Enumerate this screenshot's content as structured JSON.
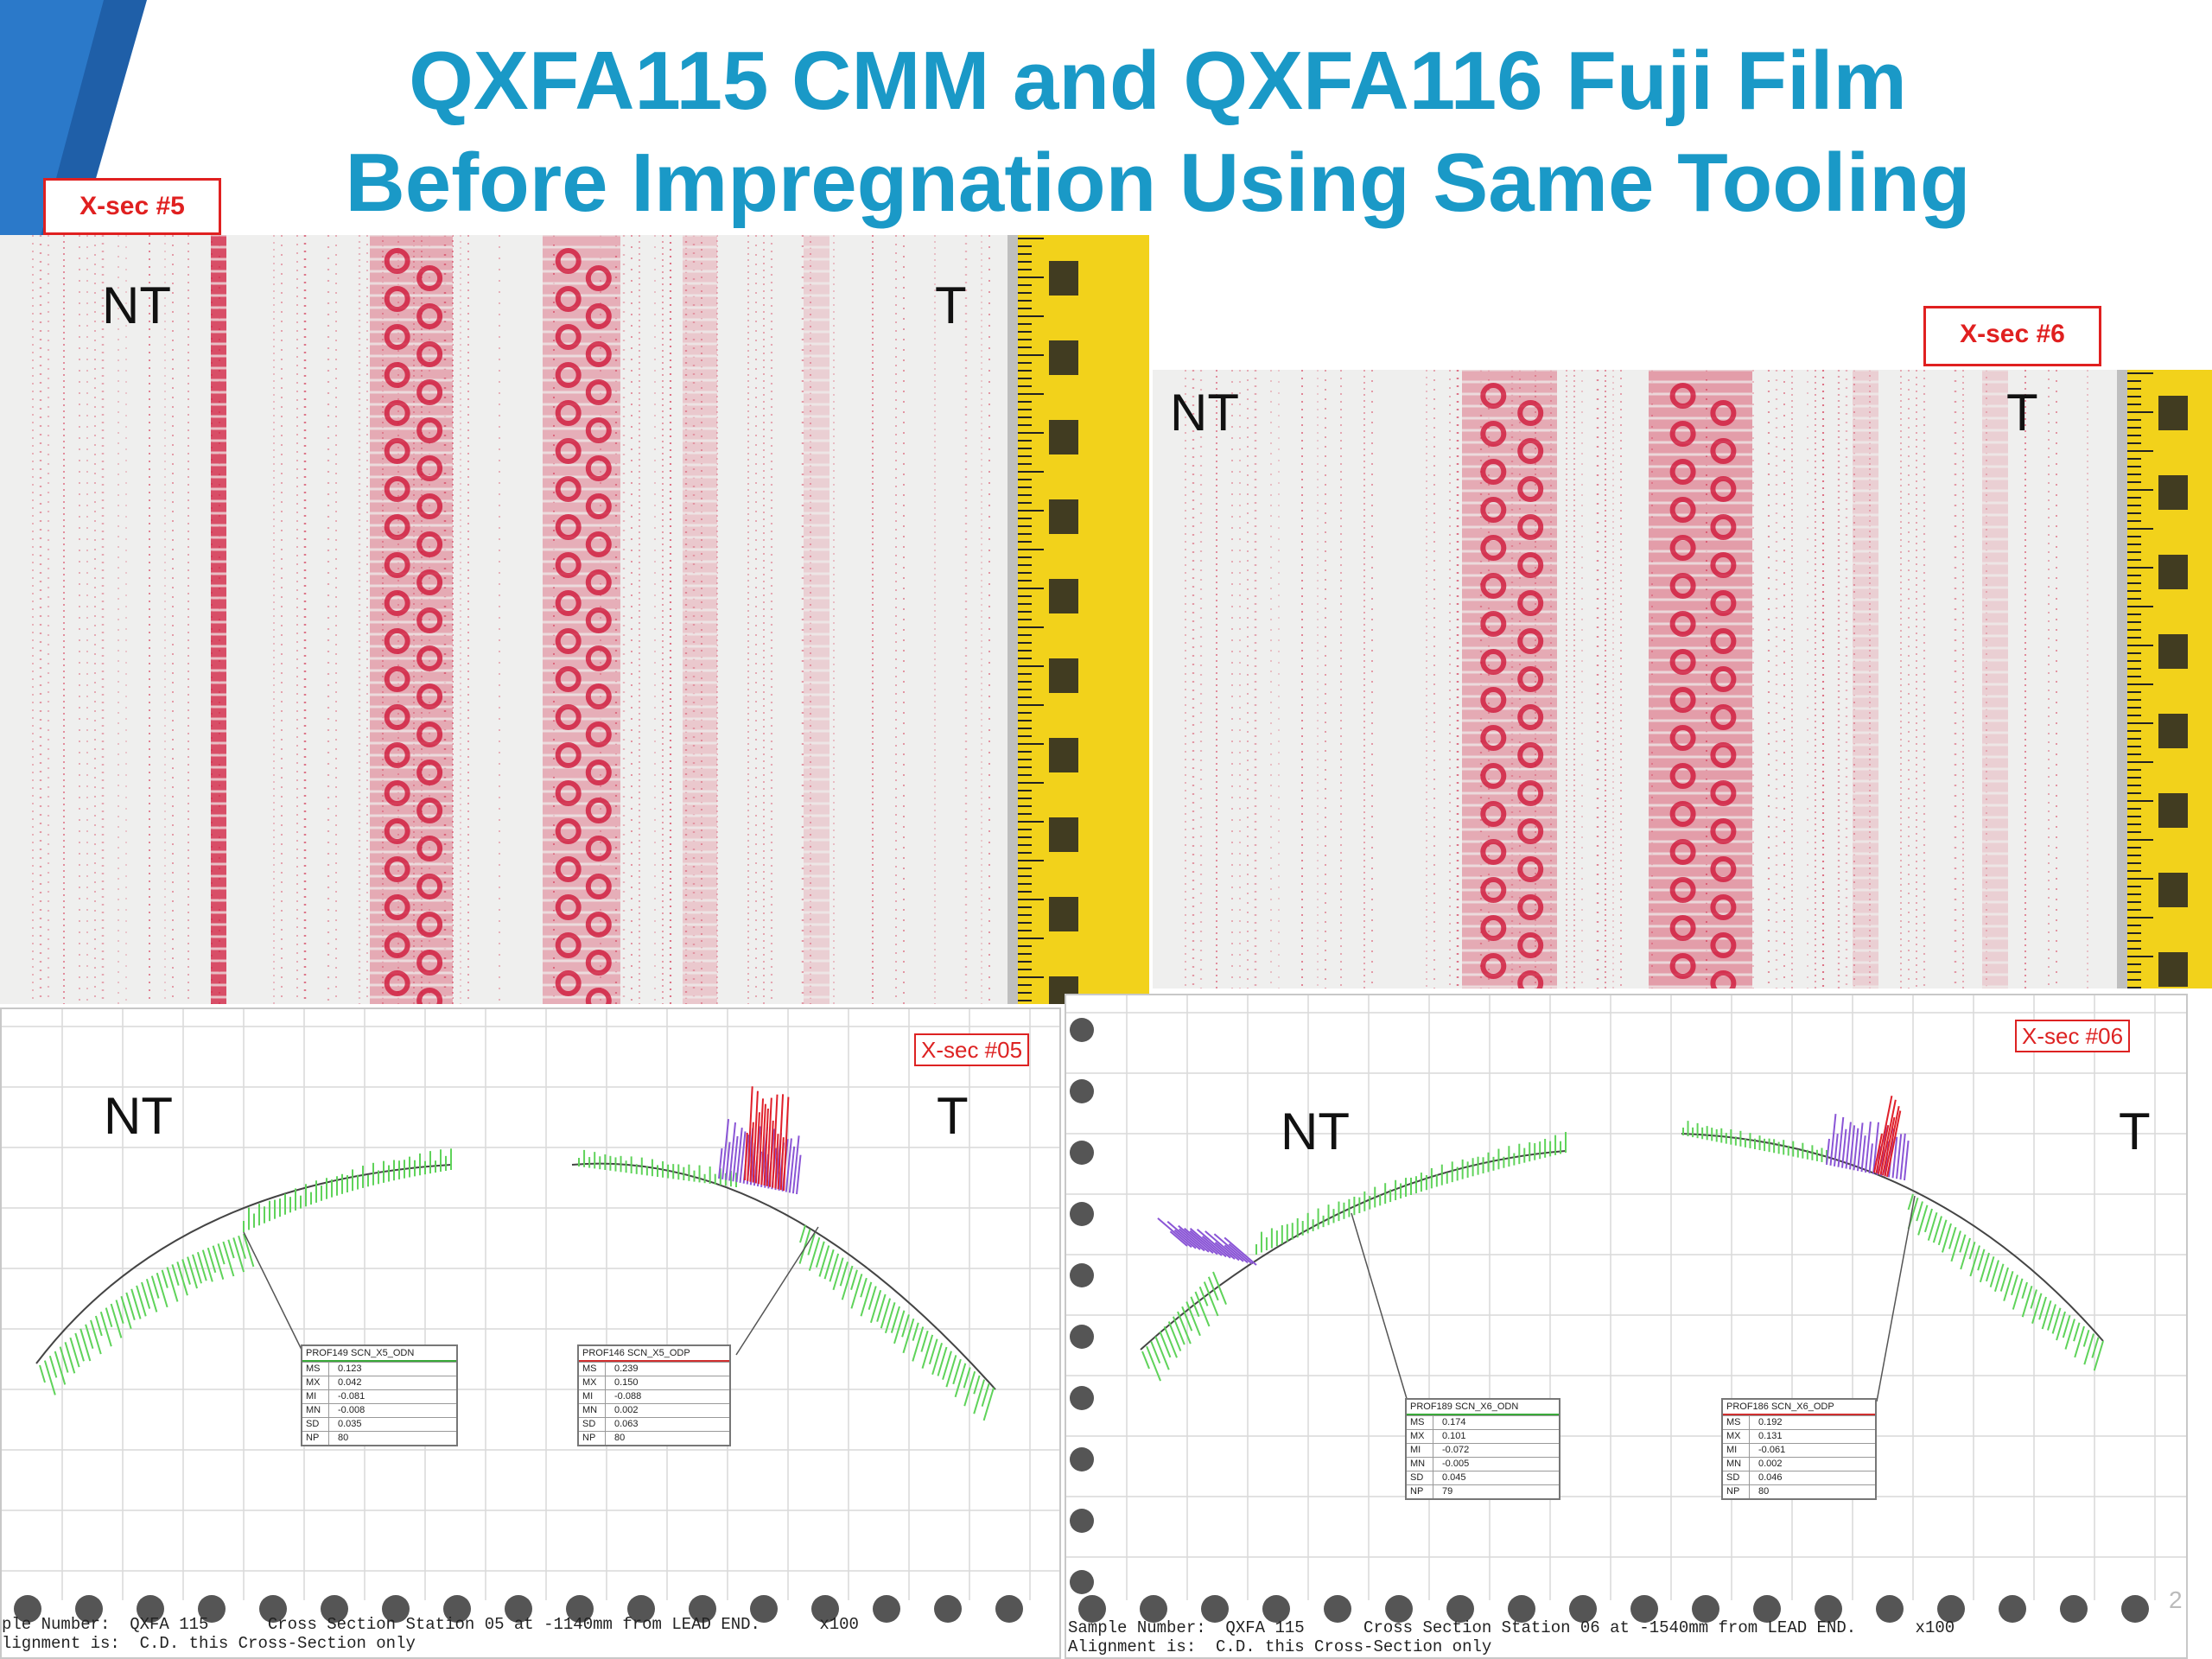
{
  "title": {
    "line1": "QXFA115 CMM and QXFA116 Fuji Film",
    "line2": "Before Impregnation Using Same Tooling"
  },
  "photo_left": {
    "label": "X-sec #5",
    "nt": "NT",
    "t": "T"
  },
  "photo_right": {
    "label": "X-sec #6",
    "nt": "NT",
    "t": "T"
  },
  "cmm_left": {
    "label": "X-sec #05",
    "nt": "NT",
    "t": "T",
    "stats_a": {
      "header": "PROF149 SCN_X5_ODN",
      "rows": [
        {
          "k": "MS",
          "v": "0.123"
        },
        {
          "k": "MX",
          "v": "0.042"
        },
        {
          "k": "MI",
          "v": "-0.081"
        },
        {
          "k": "MN",
          "v": "-0.008"
        },
        {
          "k": "SD",
          "v": "0.035"
        },
        {
          "k": "NP",
          "v": "80"
        }
      ]
    },
    "stats_b": {
      "header": "PROF146 SCN_X5_ODP",
      "rows": [
        {
          "k": "MS",
          "v": "0.239"
        },
        {
          "k": "MX",
          "v": "0.150"
        },
        {
          "k": "MI",
          "v": "-0.088"
        },
        {
          "k": "MN",
          "v": "0.002"
        },
        {
          "k": "SD",
          "v": "0.063"
        },
        {
          "k": "NP",
          "v": "80"
        }
      ]
    },
    "footer_line1": "ple Number:  QXFA 115      Cross Section Station 05 at -1140mm from LEAD END.      x100",
    "footer_line2": "lignment is:  C.D. this Cross-Section only"
  },
  "cmm_right": {
    "label": "X-sec #06",
    "nt": "NT",
    "t": "T",
    "stats_a": {
      "header": "PROF189 SCN_X6_ODN",
      "rows": [
        {
          "k": "MS",
          "v": "0.174"
        },
        {
          "k": "MX",
          "v": "0.101"
        },
        {
          "k": "MI",
          "v": "-0.072"
        },
        {
          "k": "MN",
          "v": "-0.005"
        },
        {
          "k": "SD",
          "v": "0.045"
        },
        {
          "k": "NP",
          "v": "79"
        }
      ]
    },
    "stats_b": {
      "header": "PROF186 SCN_X6_ODP",
      "rows": [
        {
          "k": "MS",
          "v": "0.192"
        },
        {
          "k": "MX",
          "v": "0.131"
        },
        {
          "k": "MI",
          "v": "-0.061"
        },
        {
          "k": "MN",
          "v": "0.002"
        },
        {
          "k": "SD",
          "v": "0.046"
        },
        {
          "k": "NP",
          "v": "80"
        }
      ]
    },
    "footer_line1": "Sample Number:  QXFA 115      Cross Section Station 06 at -1540mm from LEAD END.      x100",
    "footer_line2": "Alignment is:  C.D. this Cross-Section only"
  },
  "page_number": "2",
  "colors": {
    "title": "#1a99c7",
    "label_border": "#e02020",
    "ink": "#d0183a",
    "deviation_green": "#5fd35a",
    "deviation_purple": "#8a55d6",
    "deviation_red": "#e0202a",
    "tape_yellow": "#f2d21b"
  }
}
